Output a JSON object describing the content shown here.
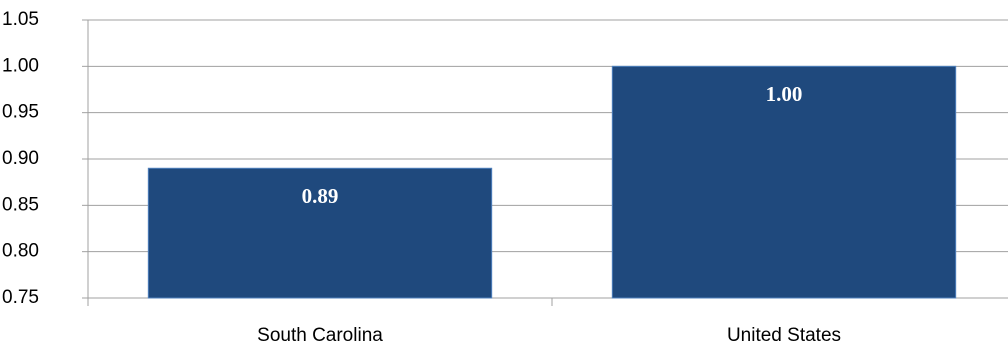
{
  "chart_data": {
    "type": "bar",
    "categories": [
      "South Carolina",
      "United States"
    ],
    "values": [
      0.89,
      1
    ],
    "value_labels": [
      "0.89",
      "1.00"
    ],
    "color": "#1f497d",
    "ylim": [
      0.75,
      1.05
    ],
    "yticks": [
      0.75,
      {
        "value": 0.8,
        "label": "0.80"
      },
      0.85,
      {
        "value": 0.9,
        "label": "0.90"
      },
      0.95,
      {
        "value": 1,
        "label": "1.00"
      },
      1.05
    ],
    "grid": true
  }
}
